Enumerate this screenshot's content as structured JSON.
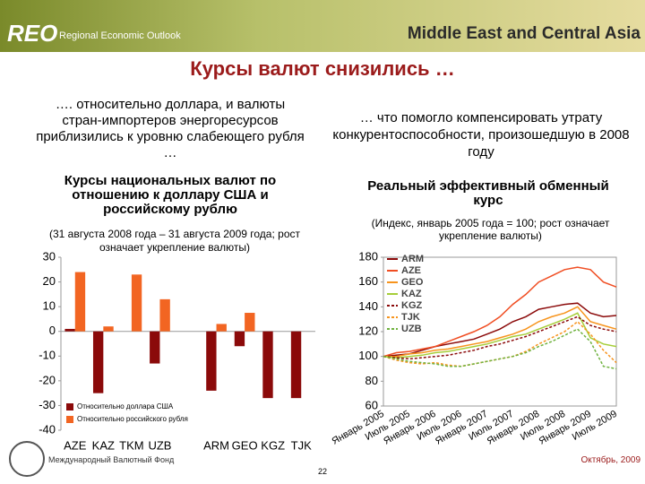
{
  "header": {
    "logo": "REO",
    "subtitle": "Regional Economic Outlook",
    "region": "Middle East and Central Asia"
  },
  "title": "Курсы валют снизились …",
  "left_text": "…. относительно доллара, и валюты стран-импортеров энергоресурсов приблизились к уровню слабеющего рубля …",
  "right_text": "… что помогло компенсировать утрату конкурентоспособности, произошедшую в 2008 году",
  "footer": {
    "org": "Международный Валютный Фонд",
    "page": "22",
    "date": "Октябрь, 2009"
  },
  "chart_data": [
    {
      "type": "bar",
      "title": "Курсы национальных валют по отношению к доллару США и российскому рублю",
      "subtitle": "(31 августа 2008 года – 31 августа 2009 года; рост означает укрепление валюты)",
      "categories": [
        "AZE",
        "KAZ",
        "TKM",
        "UZB",
        null,
        "ARM",
        "GEO",
        "KGZ",
        "TJK"
      ],
      "series": [
        {
          "name": "Относительно доллара США",
          "color": "#8b0a0a",
          "values": [
            1,
            -25,
            0,
            -13,
            null,
            -24,
            -6,
            -27,
            -27
          ]
        },
        {
          "name": "Относительно российского рубля",
          "color": "#f26522",
          "values": [
            24,
            2,
            23,
            13,
            null,
            3,
            7.5,
            0,
            0
          ]
        }
      ],
      "ylim": [
        -40,
        30
      ],
      "yticks": [
        -40,
        -30,
        -20,
        -10,
        0,
        10,
        20,
        30
      ],
      "legend": "bottom-left"
    },
    {
      "type": "line",
      "title": "Реальный эффективный обменный курс",
      "subtitle": "(Индекс, январь 2005 года = 100; рост означает укрепление валюты)",
      "categories": [
        "Январь 2005",
        null,
        "Июль 2005",
        null,
        "Январь 2006",
        null,
        "Июль 2006",
        null,
        "Январь 2007",
        null,
        "Июль 2007",
        null,
        "Январь 2008",
        null,
        "Июль 2008",
        null,
        "Январь 2009",
        null,
        "Июль 2009"
      ],
      "series": [
        {
          "name": "ARM",
          "color": "#8b0a0a",
          "dashed": false,
          "values": [
            100,
            101,
            102,
            105,
            108,
            110,
            112,
            114,
            118,
            122,
            128,
            132,
            138,
            140,
            142,
            143,
            135,
            132,
            133
          ]
        },
        {
          "name": "AZE",
          "color": "#f04e23",
          "dashed": false,
          "values": [
            100,
            103,
            104,
            106,
            108,
            112,
            116,
            120,
            125,
            132,
            142,
            150,
            160,
            165,
            170,
            172,
            170,
            160,
            156
          ]
        },
        {
          "name": "GEO",
          "color": "#f7941d",
          "dashed": false,
          "values": [
            100,
            100,
            102,
            103,
            105,
            106,
            108,
            110,
            112,
            115,
            118,
            122,
            128,
            132,
            135,
            140,
            128,
            125,
            122
          ]
        },
        {
          "name": "KAZ",
          "color": "#a6ce39",
          "dashed": false,
          "values": [
            100,
            99,
            100,
            101,
            103,
            104,
            106,
            108,
            110,
            113,
            116,
            118,
            122,
            126,
            130,
            135,
            115,
            110,
            108
          ]
        },
        {
          "name": "KGZ",
          "color": "#8b0a0a",
          "dashed": true,
          "values": [
            100,
            99,
            98,
            99,
            100,
            101,
            103,
            105,
            108,
            110,
            113,
            116,
            120,
            124,
            128,
            132,
            125,
            122,
            120
          ]
        },
        {
          "name": "TJK",
          "color": "#f7941d",
          "dashed": true,
          "values": [
            100,
            97,
            95,
            94,
            95,
            93,
            92,
            94,
            96,
            98,
            100,
            104,
            110,
            115,
            120,
            128,
            118,
            105,
            95
          ]
        },
        {
          "name": "UZB",
          "color": "#6fb23f",
          "dashed": true,
          "values": [
            100,
            98,
            96,
            95,
            94,
            92,
            92,
            94,
            96,
            98,
            100,
            103,
            108,
            112,
            117,
            122,
            112,
            92,
            90
          ]
        }
      ],
      "ylim": [
        60,
        180
      ],
      "yticks": [
        60,
        80,
        100,
        120,
        140,
        160,
        180
      ],
      "grid": false,
      "legend": "top-left"
    }
  ]
}
